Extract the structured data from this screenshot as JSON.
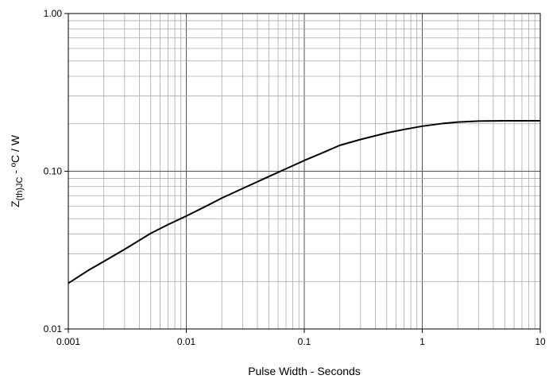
{
  "chart_data": {
    "type": "line",
    "title": "",
    "xlabel": "Pulse Width - Seconds",
    "ylabel": {
      "main": "Z",
      "sub": "(th)JC",
      "rest": " - ºC / W"
    },
    "x_scale": "log",
    "y_scale": "log",
    "xlim": [
      0.001,
      10
    ],
    "ylim": [
      0.01,
      1.0
    ],
    "x_ticks": [
      0.001,
      0.01,
      0.1,
      1,
      10
    ],
    "x_tick_labels": [
      "0.001",
      "0.01",
      "0.1",
      "1",
      "10"
    ],
    "y_ticks": [
      0.01,
      0.1,
      1.0
    ],
    "y_tick_labels": [
      "0.01",
      "0.10",
      "1.00"
    ],
    "grid": true,
    "legend": "none",
    "line_color": "#000000",
    "series": [
      {
        "x": [
          0.001,
          0.0015,
          0.002,
          0.003,
          0.005,
          0.007,
          0.01,
          0.015,
          0.02,
          0.03,
          0.05,
          0.07,
          0.1,
          0.15,
          0.2,
          0.3,
          0.5,
          0.7,
          1,
          1.5,
          2,
          3,
          5,
          7,
          10
        ],
        "y": [
          0.0195,
          0.0237,
          0.0268,
          0.032,
          0.0404,
          0.0459,
          0.052,
          0.0605,
          0.0676,
          0.0777,
          0.0925,
          0.1037,
          0.117,
          0.133,
          0.146,
          0.159,
          0.175,
          0.184,
          0.193,
          0.201,
          0.205,
          0.208,
          0.209,
          0.209,
          0.209
        ]
      }
    ]
  }
}
